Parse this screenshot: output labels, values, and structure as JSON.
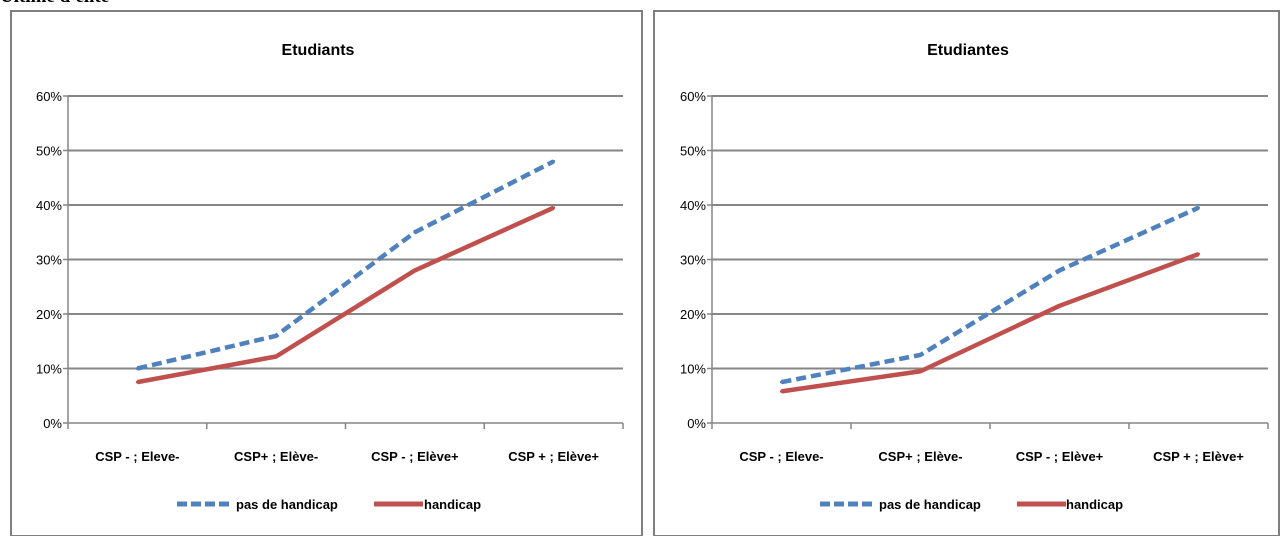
{
  "page": {
    "heading": "Ultime d'élite"
  },
  "chart_data": [
    {
      "type": "line",
      "title": "Etudiants",
      "categories": [
        "CSP - ; Eleve-",
        "CSP+ ; Elève-",
        "CSP - ; Elève+",
        "CSP + ; Elève+"
      ],
      "ylim": [
        0,
        0.6
      ],
      "yticks": [
        "0%",
        "10%",
        "20%",
        "30%",
        "40%",
        "50%",
        "60%"
      ],
      "grid": true,
      "legend_position": "bottom",
      "series": [
        {
          "name": "pas de handicap",
          "values": [
            0.1,
            0.16,
            0.35,
            0.48
          ],
          "color": "#4f81bd",
          "style": "dashed"
        },
        {
          "name": "handicap",
          "values": [
            0.075,
            0.122,
            0.28,
            0.395
          ],
          "color": "#c0504d",
          "style": "solid"
        }
      ]
    },
    {
      "type": "line",
      "title": "Etudiantes",
      "categories": [
        "CSP - ; Eleve-",
        "CSP+ ; Elève-",
        "CSP - ; Elève+",
        "CSP + ; Elève+"
      ],
      "ylim": [
        0,
        0.6
      ],
      "yticks": [
        "0%",
        "10%",
        "20%",
        "30%",
        "40%",
        "50%",
        "60%"
      ],
      "grid": true,
      "legend_position": "bottom",
      "series": [
        {
          "name": "pas de handicap",
          "values": [
            0.075,
            0.125,
            0.28,
            0.395
          ],
          "color": "#4f81bd",
          "style": "dashed"
        },
        {
          "name": "handicap",
          "values": [
            0.058,
            0.095,
            0.215,
            0.31
          ],
          "color": "#c0504d",
          "style": "solid"
        }
      ]
    }
  ]
}
